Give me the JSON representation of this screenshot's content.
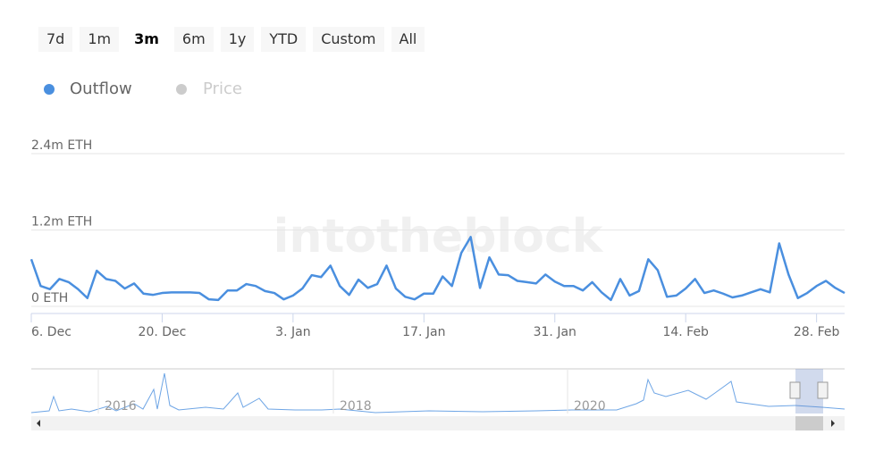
{
  "range_buttons": [
    "7d",
    "1m",
    "3m",
    "6m",
    "1y",
    "YTD",
    "Custom",
    "All"
  ],
  "selected_range": "3m",
  "watermark": "intotheblock",
  "chart_data": {
    "type": "line",
    "categories": [
      "6. Dec",
      null,
      null,
      null,
      null,
      null,
      null,
      null,
      null,
      null,
      null,
      null,
      null,
      null,
      "20. Dec",
      null,
      null,
      null,
      null,
      null,
      null,
      null,
      null,
      null,
      null,
      null,
      null,
      null,
      "3. Jan",
      null,
      null,
      null,
      null,
      null,
      null,
      null,
      null,
      null,
      null,
      null,
      null,
      null,
      "17. Jan",
      null,
      null,
      null,
      null,
      null,
      null,
      null,
      null,
      null,
      null,
      null,
      null,
      null,
      "31. Jan",
      null,
      null,
      null,
      null,
      null,
      null,
      null,
      null,
      null,
      null,
      null,
      null,
      null,
      "14. Feb",
      null,
      null,
      null,
      null,
      null,
      null,
      null,
      null,
      null,
      null,
      null,
      null,
      null,
      "28. Feb",
      null,
      null,
      null
    ],
    "series": [
      {
        "name": "Outflow",
        "color": "#4a8fdf",
        "values": [
          0.74,
          0.32,
          0.27,
          0.43,
          0.38,
          0.27,
          0.13,
          0.56,
          0.43,
          0.4,
          0.28,
          0.36,
          0.2,
          0.18,
          0.21,
          0.22,
          0.22,
          0.22,
          0.21,
          0.11,
          0.1,
          0.25,
          0.25,
          0.35,
          0.32,
          0.24,
          0.21,
          0.11,
          0.17,
          0.28,
          0.49,
          0.46,
          0.64,
          0.32,
          0.18,
          0.42,
          0.29,
          0.35,
          0.64,
          0.28,
          0.15,
          0.11,
          0.2,
          0.2,
          0.47,
          0.32,
          0.84,
          1.09,
          0.29,
          0.77,
          0.5,
          0.49,
          0.4,
          0.38,
          0.36,
          0.5,
          0.39,
          0.32,
          0.32,
          0.25,
          0.38,
          0.22,
          0.1,
          0.43,
          0.17,
          0.24,
          0.74,
          0.57,
          0.15,
          0.17,
          0.28,
          0.43,
          0.21,
          0.25,
          0.2,
          0.14,
          0.17,
          0.22,
          0.27,
          0.22,
          0.99,
          0.5,
          0.13,
          0.21,
          0.32,
          0.4,
          0.29,
          0.21
        ]
      }
    ],
    "hidden_series": [
      {
        "name": "Price",
        "color": "#cccccc"
      }
    ],
    "ylim": [
      0,
      2.4
    ],
    "yticks": [
      {
        "value": 0,
        "label": "0 ETH"
      },
      {
        "value": 1.2,
        "label": "1.2m ETH"
      },
      {
        "value": 2.4,
        "label": "2.4m ETH"
      }
    ],
    "grid": true,
    "navigator_labels": [
      "2016",
      "2018",
      "2020"
    ]
  }
}
